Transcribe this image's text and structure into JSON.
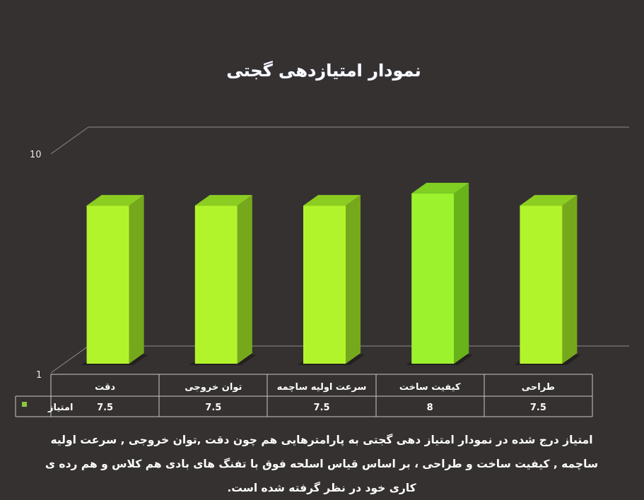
{
  "chart_data": {
    "type": "bar",
    "title": "نمودار امتیازدهی گجتی",
    "categories": [
      "دقت",
      "توان خروجی",
      "سرعت اولیه ساچمه",
      "کیفیت ساخت",
      "طراحی"
    ],
    "series": [
      {
        "name": "امتیاز",
        "values": [
          7.5,
          7.5,
          7.5,
          8,
          7.5
        ]
      }
    ],
    "value_labels": [
      "7.5",
      "7.5",
      "7.5",
      "8",
      "7.5"
    ],
    "ylim": [
      1,
      10
    ],
    "y_ticks": [
      "1",
      "10"
    ],
    "grid": true,
    "legend": "in-table",
    "colors": {
      "bar_front": "#b2f42b",
      "bar_side": "#76a81c",
      "bar_top": "#8ccd21",
      "bar_front_highlight": "#9cf22d",
      "bar_side_highlight": "#69b31a",
      "bar_top_highlight": "#7fd022",
      "legend_marker": "#8dc63f"
    }
  },
  "description": "امتیاز درج شده در نمودار امتیاز دهی گجتی  به پارامترهایی هم چون دقت ,توان خروجی , سرعت اولیه ساچمه , کیفیت ساخت و طراحی ، بر اساس قیاس اسلحه فوق با تفنگ های بادی هم کلاس و هم رده ی کاری خود در نظر گرفته شده است."
}
